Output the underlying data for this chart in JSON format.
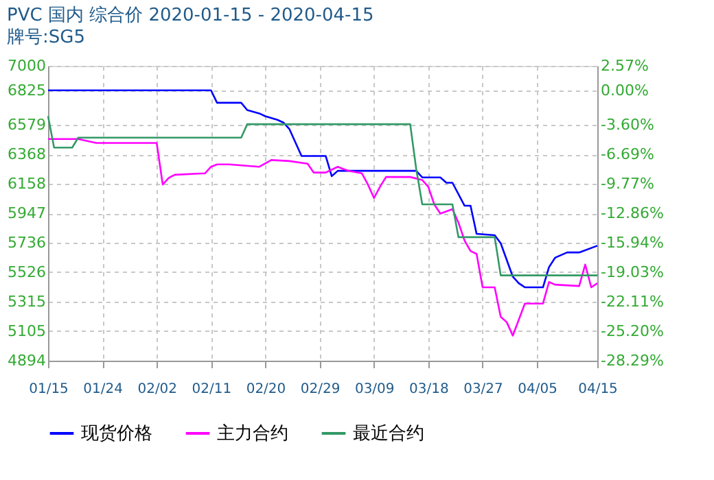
{
  "chart_data": {
    "type": "line",
    "title": "PVC 国内 综合价 2020-01-15 - 2020-04-15",
    "subtitle": "牌号:SG5",
    "xlim": [
      "2020-01-15",
      "2020-04-15"
    ],
    "xticks": [
      {
        "value": "2020-01-15",
        "label": "01/15"
      },
      {
        "value": "2020-01-24",
        "label": "01/24"
      },
      {
        "value": "2020-02-02",
        "label": "02/02"
      },
      {
        "value": "2020-02-11",
        "label": "02/11"
      },
      {
        "value": "2020-02-20",
        "label": "02/20"
      },
      {
        "value": "2020-02-29",
        "label": "02/29"
      },
      {
        "value": "2020-03-09",
        "label": "03/09"
      },
      {
        "value": "2020-03-18",
        "label": "03/18"
      },
      {
        "value": "2020-03-27",
        "label": "03/27"
      },
      {
        "value": "2020-04-05",
        "label": "04/05"
      },
      {
        "value": "2020-04-15",
        "label": "04/15"
      }
    ],
    "ylim": [
      4894,
      7000
    ],
    "yticks": [
      4894,
      5105,
      5315,
      5526,
      5736,
      5947,
      6158,
      6368,
      6579,
      6825,
      7000
    ],
    "y2lim": [
      -28.29,
      2.57
    ],
    "y2ticks": [
      {
        "value": -28.29,
        "label": "-28.29%"
      },
      {
        "value": -25.2,
        "label": "-25.20%"
      },
      {
        "value": -22.11,
        "label": "-22.11%"
      },
      {
        "value": -19.03,
        "label": "-19.03%"
      },
      {
        "value": -15.94,
        "label": "-15.94%"
      },
      {
        "value": -12.86,
        "label": "-12.86%"
      },
      {
        "value": -9.77,
        "label": "-9.77%"
      },
      {
        "value": -6.69,
        "label": "-6.69%"
      },
      {
        "value": -3.6,
        "label": "-3.60%"
      },
      {
        "value": 0,
        "label": "0.00%"
      },
      {
        "value": 2.57,
        "label": "2.57%"
      }
    ],
    "grid": true,
    "legend": "bottom",
    "marker": "none",
    "line_style": "solid",
    "series": [
      {
        "name": "现货价格",
        "color": "#0000ff",
        "x": [
          "2020-01-15",
          "2020-02-11",
          "2020-02-12",
          "2020-02-16",
          "2020-02-17",
          "2020-02-19",
          "2020-02-20",
          "2020-02-22",
          "2020-02-23",
          "2020-02-24",
          "2020-02-26",
          "2020-03-01",
          "2020-03-02",
          "2020-03-03",
          "2020-03-16",
          "2020-03-17",
          "2020-03-20",
          "2020-03-21",
          "2020-03-22",
          "2020-03-24",
          "2020-03-25",
          "2020-03-26",
          "2020-03-29",
          "2020-03-30",
          "2020-04-01",
          "2020-04-02",
          "2020-04-03",
          "2020-04-06",
          "2020-04-07",
          "2020-04-08",
          "2020-04-10",
          "2020-04-12",
          "2020-04-15"
        ],
        "values": [
          6825,
          6825,
          6736,
          6736,
          6684,
          6660,
          6640,
          6614,
          6595,
          6547,
          6356,
          6356,
          6212,
          6250,
          6250,
          6203,
          6203,
          6165,
          6165,
          6001,
          6001,
          5800,
          5790,
          5733,
          5494,
          5447,
          5418,
          5418,
          5562,
          5629,
          5667,
          5667,
          5715
        ]
      },
      {
        "name": "主力合约",
        "color": "#ff00ff",
        "x": [
          "2020-01-15",
          "2020-01-20",
          "2020-01-23",
          "2020-02-02",
          "2020-02-03",
          "2020-02-04",
          "2020-02-05",
          "2020-02-10",
          "2020-02-11",
          "2020-02-12",
          "2020-02-14",
          "2020-02-19",
          "2020-02-21",
          "2020-02-24",
          "2020-02-27",
          "2020-02-28",
          "2020-03-01",
          "2020-03-03",
          "2020-03-04",
          "2020-03-05",
          "2020-03-07",
          "2020-03-08",
          "2020-03-09",
          "2020-03-10",
          "2020-03-11",
          "2020-03-15",
          "2020-03-17",
          "2020-03-18",
          "2020-03-19",
          "2020-03-20",
          "2020-03-22",
          "2020-03-23",
          "2020-03-24",
          "2020-03-25",
          "2020-03-26",
          "2020-03-27",
          "2020-03-29",
          "2020-03-30",
          "2020-03-31",
          "2020-04-01",
          "2020-04-03",
          "2020-04-06",
          "2020-04-07",
          "2020-04-08",
          "2020-04-12",
          "2020-04-13",
          "2020-04-14",
          "2020-04-15"
        ],
        "values": [
          6477,
          6477,
          6449,
          6449,
          6152,
          6200,
          6222,
          6232,
          6279,
          6296,
          6296,
          6279,
          6327,
          6320,
          6301,
          6238,
          6238,
          6279,
          6262,
          6248,
          6232,
          6152,
          6056,
          6136,
          6206,
          6206,
          6184,
          6136,
          6009,
          5945,
          5976,
          5880,
          5753,
          5677,
          5657,
          5418,
          5418,
          5207,
          5169,
          5073,
          5302,
          5302,
          5456,
          5437,
          5427,
          5581,
          5418,
          5447
        ]
      },
      {
        "name": "最近合约",
        "color": "#339966",
        "x": [
          "2020-01-15",
          "2020-01-16",
          "2020-01-19",
          "2020-01-20",
          "2020-02-16",
          "2020-02-17",
          "2020-03-15",
          "2020-03-16",
          "2020-03-17",
          "2020-03-22",
          "2020-03-23",
          "2020-03-29",
          "2020-03-30",
          "2020-04-15"
        ],
        "values": [
          6640,
          6416,
          6416,
          6487,
          6487,
          6583,
          6583,
          6263,
          6011,
          6011,
          5776,
          5776,
          5503,
          5503
        ]
      }
    ]
  }
}
